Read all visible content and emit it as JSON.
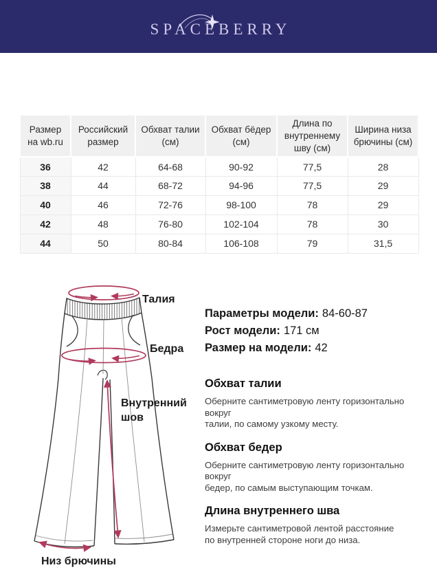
{
  "brand": {
    "logo_text": "SPACEBERRY"
  },
  "colors": {
    "header_bg": "#2b2a6b",
    "logo": "#cfc9ea",
    "annotation": "#b13a5c",
    "table_header_bg": "#f0f0f0"
  },
  "size_table": {
    "columns": [
      "Размер на wb.ru",
      "Российский размер",
      "Обхват талии (см)",
      "Обхват бёдер (см)",
      "Длина по внутреннему шву (см)",
      "Ширина низа брючины (см)"
    ],
    "rows": [
      [
        "36",
        "42",
        "64-68",
        "90-92",
        "77,5",
        "28"
      ],
      [
        "38",
        "44",
        "68-72",
        "94-96",
        "77,5",
        "29"
      ],
      [
        "40",
        "46",
        "72-76",
        "98-100",
        "78",
        "29"
      ],
      [
        "42",
        "48",
        "76-80",
        "102-104",
        "78",
        "30"
      ],
      [
        "44",
        "50",
        "80-84",
        "106-108",
        "79",
        "31,5"
      ]
    ]
  },
  "figure": {
    "labels": {
      "waist": "Талия",
      "hips": "Бедра",
      "inseam_line1": "Внутренний",
      "inseam_line2": "шов",
      "hem": "Низ брючины"
    }
  },
  "model_info": [
    {
      "label": "Параметры модели:",
      "value": "84-60-87"
    },
    {
      "label": "Рост модели:",
      "value": "171 см"
    },
    {
      "label": "Размер на модели:",
      "value": "42"
    }
  ],
  "sections": [
    {
      "title": "Обхват талии",
      "body_lines": [
        "Оберните сантиметровую ленту горизонтально вокруг",
        "талии, по самому узкому месту."
      ]
    },
    {
      "title": "Обхват бедер",
      "body_lines": [
        "Оберните сантиметровую ленту горизонтально вокруг",
        "бедер, по самым выступающим точкам."
      ]
    },
    {
      "title": "Длина внутреннего шва",
      "body_lines": [
        "Измерьте сантиметровой лентой расстояние",
        "по внутренней стороне ноги до низа."
      ]
    }
  ]
}
